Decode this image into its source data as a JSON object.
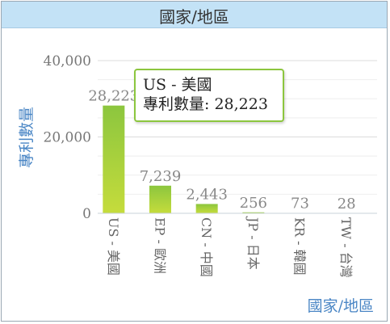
{
  "header": {
    "title": "國家/地區"
  },
  "chart_data": {
    "type": "bar",
    "title": "",
    "xlabel": "國家/地區",
    "ylabel": "專利數量",
    "ylim": [
      0,
      40000
    ],
    "yticks": [
      0,
      20000,
      40000
    ],
    "ytick_labels": [
      "0",
      "20,000",
      "40,000"
    ],
    "categories": [
      "US - 美國",
      "EP - 歐洲",
      "CN - 中國",
      "JP - 日本",
      "KR - 韓國",
      "TW - 台灣"
    ],
    "values": [
      28223,
      7239,
      2443,
      256,
      73,
      28
    ],
    "value_labels": [
      "28,223",
      "7,239",
      "2,443",
      "256",
      "73",
      "28"
    ],
    "grid": true,
    "bar_gradient": [
      "#8cc63e",
      "#c5dc3c"
    ]
  },
  "tooltip": {
    "line1": "US - 美國",
    "line2": "專利數量: 28,223"
  }
}
